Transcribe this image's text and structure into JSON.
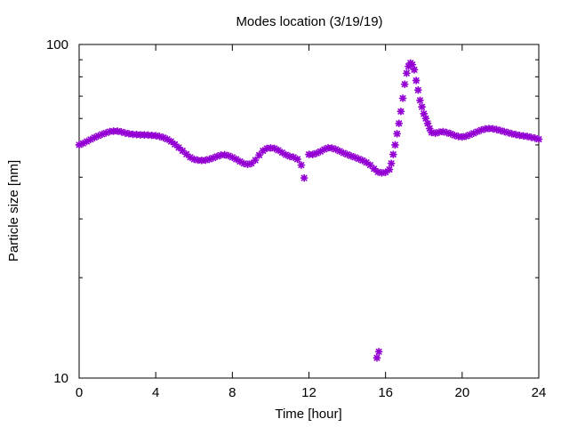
{
  "chart_data": {
    "type": "scatter",
    "title": "Modes location (3/19/19)",
    "xlabel": "Time [hour]",
    "ylabel": "Particle size [nm]",
    "xlim": [
      0,
      24
    ],
    "ylim": [
      10,
      100
    ],
    "yscale": "log",
    "x_ticks": [
      0,
      4,
      8,
      12,
      16,
      20,
      24
    ],
    "y_ticks": [
      10,
      100
    ],
    "grid": false,
    "marker_color": "#9400d3",
    "series": [
      {
        "values": [
          [
            0.0,
            50.0
          ],
          [
            0.2,
            50.5
          ],
          [
            0.4,
            51.2
          ],
          [
            0.6,
            51.9
          ],
          [
            0.8,
            52.6
          ],
          [
            1.0,
            53.2
          ],
          [
            1.2,
            53.8
          ],
          [
            1.4,
            54.3
          ],
          [
            1.6,
            54.8
          ],
          [
            1.8,
            55.0
          ],
          [
            2.0,
            55.0
          ],
          [
            2.2,
            54.7
          ],
          [
            2.4,
            54.3
          ],
          [
            2.6,
            54.0
          ],
          [
            2.8,
            53.8
          ],
          [
            3.0,
            53.7
          ],
          [
            3.2,
            53.6
          ],
          [
            3.4,
            53.6
          ],
          [
            3.6,
            53.5
          ],
          [
            3.8,
            53.4
          ],
          [
            4.0,
            53.3
          ],
          [
            4.2,
            53.0
          ],
          [
            4.4,
            52.6
          ],
          [
            4.6,
            52.0
          ],
          [
            4.8,
            51.2
          ],
          [
            5.0,
            50.2
          ],
          [
            5.2,
            49.1
          ],
          [
            5.4,
            48.0
          ],
          [
            5.6,
            46.9
          ],
          [
            5.8,
            45.9
          ],
          [
            6.0,
            45.3
          ],
          [
            6.2,
            45.0
          ],
          [
            6.4,
            44.9
          ],
          [
            6.6,
            45.0
          ],
          [
            6.8,
            45.3
          ],
          [
            7.0,
            45.7
          ],
          [
            7.2,
            46.2
          ],
          [
            7.4,
            46.6
          ],
          [
            7.6,
            46.7
          ],
          [
            7.8,
            46.4
          ],
          [
            8.0,
            45.9
          ],
          [
            8.2,
            45.3
          ],
          [
            8.4,
            44.6
          ],
          [
            8.6,
            44.0
          ],
          [
            8.8,
            43.7
          ],
          [
            9.0,
            44.0
          ],
          [
            9.2,
            45.0
          ],
          [
            9.4,
            46.6
          ],
          [
            9.6,
            48.0
          ],
          [
            9.8,
            48.8
          ],
          [
            10.0,
            49.0
          ],
          [
            10.2,
            48.8
          ],
          [
            10.4,
            48.2
          ],
          [
            10.6,
            47.4
          ],
          [
            10.8,
            46.7
          ],
          [
            11.0,
            46.2
          ],
          [
            11.2,
            45.9
          ],
          [
            11.4,
            45.3
          ],
          [
            11.6,
            43.5
          ],
          [
            11.75,
            39.8
          ],
          [
            12.0,
            46.8
          ],
          [
            12.2,
            46.8
          ],
          [
            12.4,
            47.2
          ],
          [
            12.6,
            47.8
          ],
          [
            12.8,
            48.5
          ],
          [
            13.0,
            49.0
          ],
          [
            13.2,
            48.9
          ],
          [
            13.4,
            48.5
          ],
          [
            13.6,
            47.9
          ],
          [
            13.8,
            47.3
          ],
          [
            14.0,
            46.8
          ],
          [
            14.2,
            46.3
          ],
          [
            14.4,
            45.9
          ],
          [
            14.6,
            45.4
          ],
          [
            14.8,
            44.9
          ],
          [
            15.0,
            44.3
          ],
          [
            15.2,
            43.5
          ],
          [
            15.4,
            42.4
          ],
          [
            15.6,
            41.5
          ],
          [
            15.8,
            41.2
          ],
          [
            16.0,
            41.4
          ],
          [
            16.2,
            42.2
          ],
          [
            16.3,
            44.0
          ],
          [
            16.4,
            46.8
          ],
          [
            16.5,
            50.0
          ],
          [
            16.6,
            54.0
          ],
          [
            16.7,
            58.0
          ],
          [
            16.8,
            63.0
          ],
          [
            16.9,
            69.0
          ],
          [
            17.0,
            76.0
          ],
          [
            17.1,
            82.0
          ],
          [
            17.2,
            86.0
          ],
          [
            17.3,
            88.0
          ],
          [
            17.4,
            87.0
          ],
          [
            17.5,
            84.0
          ],
          [
            17.6,
            78.0
          ],
          [
            17.7,
            73.0
          ],
          [
            17.8,
            68.0
          ],
          [
            17.9,
            65.0
          ],
          [
            18.0,
            62.0
          ],
          [
            18.1,
            60.0
          ],
          [
            18.2,
            58.0
          ],
          [
            18.3,
            56.0
          ],
          [
            18.4,
            54.5
          ],
          [
            18.6,
            54.2
          ],
          [
            18.8,
            54.6
          ],
          [
            19.0,
            54.8
          ],
          [
            19.2,
            54.4
          ],
          [
            19.4,
            54.0
          ],
          [
            19.6,
            53.4
          ],
          [
            19.8,
            53.0
          ],
          [
            20.0,
            52.8
          ],
          [
            20.2,
            53.1
          ],
          [
            20.4,
            53.6
          ],
          [
            20.6,
            54.2
          ],
          [
            20.8,
            54.8
          ],
          [
            21.0,
            55.4
          ],
          [
            21.2,
            55.8
          ],
          [
            21.4,
            56.0
          ],
          [
            21.6,
            55.9
          ],
          [
            21.8,
            55.6
          ],
          [
            22.0,
            55.2
          ],
          [
            22.2,
            54.8
          ],
          [
            22.4,
            54.4
          ],
          [
            22.6,
            54.0
          ],
          [
            22.8,
            53.7
          ],
          [
            23.0,
            53.4
          ],
          [
            23.2,
            53.2
          ],
          [
            23.4,
            53.0
          ],
          [
            23.6,
            52.7
          ],
          [
            23.8,
            52.4
          ],
          [
            24.0,
            52.0
          ],
          [
            15.65,
            12.0
          ],
          [
            15.55,
            11.5
          ]
        ]
      }
    ]
  }
}
